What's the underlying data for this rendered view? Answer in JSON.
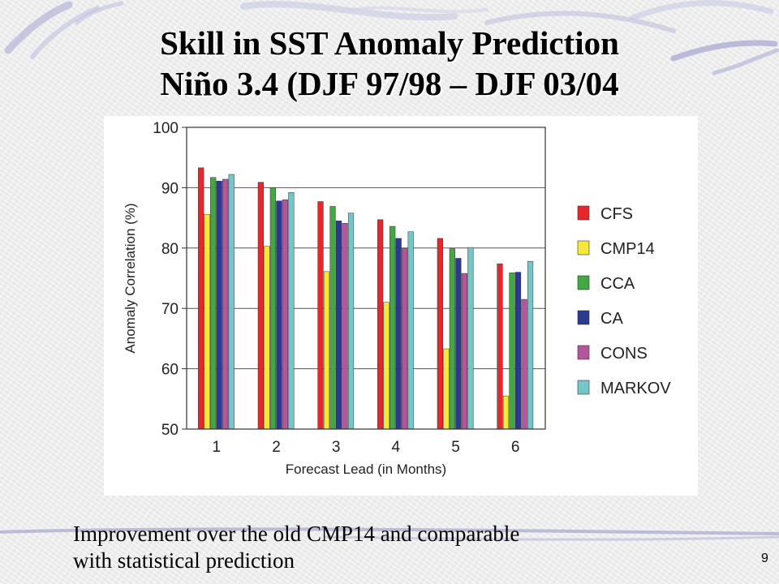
{
  "slide": {
    "title_line1": "Skill in SST Anomaly Prediction",
    "title_line2": "Niño 3.4 (DJF 97/98 – DJF 03/04",
    "caption_line1": "Improvement over the old CMP14 and comparable",
    "caption_line2": "with statistical prediction",
    "page_number": "9"
  },
  "colors": {
    "CFS": "#e8262b",
    "CMP14": "#f4e93a",
    "CCA": "#45a744",
    "CA": "#2b3990",
    "CONS": "#b3569c",
    "MARKOV": "#74c6c9"
  },
  "chart_data": {
    "type": "bar",
    "title": "",
    "xlabel": "Forecast Lead (in Months)",
    "ylabel": "Anomaly Correlation (%)",
    "ylim": [
      50,
      100
    ],
    "yticks": [
      50,
      60,
      70,
      80,
      90,
      100
    ],
    "grid": true,
    "legend_position": "right",
    "categories": [
      "1",
      "2",
      "3",
      "4",
      "5",
      "6"
    ],
    "series": [
      {
        "name": "CFS",
        "values": [
          93.3,
          90.9,
          87.7,
          84.7,
          81.6,
          77.4
        ]
      },
      {
        "name": "CMP14",
        "values": [
          85.6,
          80.3,
          76.1,
          71.0,
          63.3,
          55.5
        ]
      },
      {
        "name": "CCA",
        "values": [
          91.7,
          90.0,
          86.9,
          83.6,
          79.9,
          75.9
        ]
      },
      {
        "name": "CA",
        "values": [
          91.1,
          87.8,
          84.5,
          81.6,
          78.3,
          76.0
        ]
      },
      {
        "name": "CONS",
        "values": [
          91.4,
          88.0,
          84.1,
          79.9,
          75.8,
          71.5
        ]
      },
      {
        "name": "MARKOV",
        "values": [
          92.2,
          89.2,
          85.8,
          82.7,
          80.1,
          77.8
        ]
      }
    ]
  }
}
